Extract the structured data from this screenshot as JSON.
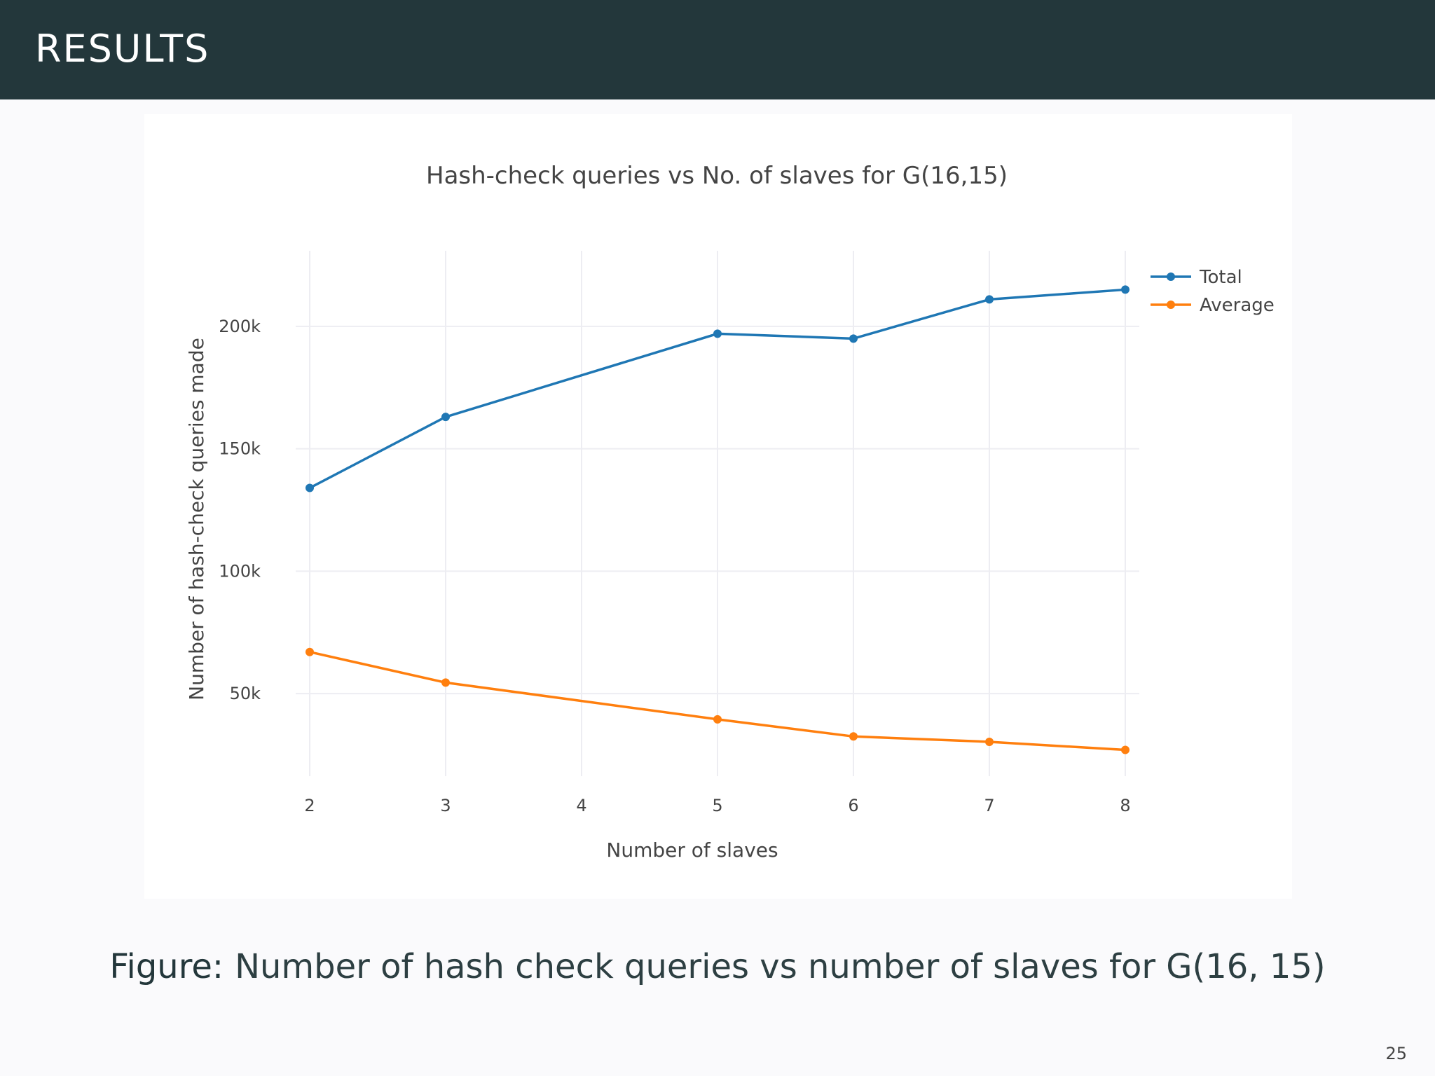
{
  "header": {
    "title": "RESULTS"
  },
  "chart_data": {
    "type": "line",
    "title": "Hash-check queries vs No. of slaves for G(16,15)",
    "xlabel": "Number of slaves",
    "ylabel": "Number of hash-check queries made",
    "x": [
      2,
      3,
      5,
      6,
      7,
      8
    ],
    "x_ticks": [
      "2",
      "3",
      "4",
      "5",
      "6",
      "7",
      "8"
    ],
    "x_tick_values": [
      2,
      3,
      4,
      5,
      6,
      7,
      8
    ],
    "xlim": [
      2,
      8
    ],
    "y_ticks": [
      "50k",
      "100k",
      "150k",
      "200k"
    ],
    "y_tick_values": [
      50000,
      100000,
      150000,
      200000
    ],
    "ylim": [
      22000,
      228000
    ],
    "grid": true,
    "legend_position": "top-right",
    "series": [
      {
        "name": "Total",
        "color": "#1f77b4",
        "values": [
          134000,
          163000,
          197000,
          195000,
          211000,
          215000
        ]
      },
      {
        "name": "Average",
        "color": "#ff7f0e",
        "values": [
          67000,
          54500,
          39500,
          32500,
          30300,
          27000
        ]
      }
    ]
  },
  "caption": {
    "label": "Figure:",
    "text": "Number of hash check queries vs number of slaves for G(16, 15)"
  },
  "page_number": "25"
}
